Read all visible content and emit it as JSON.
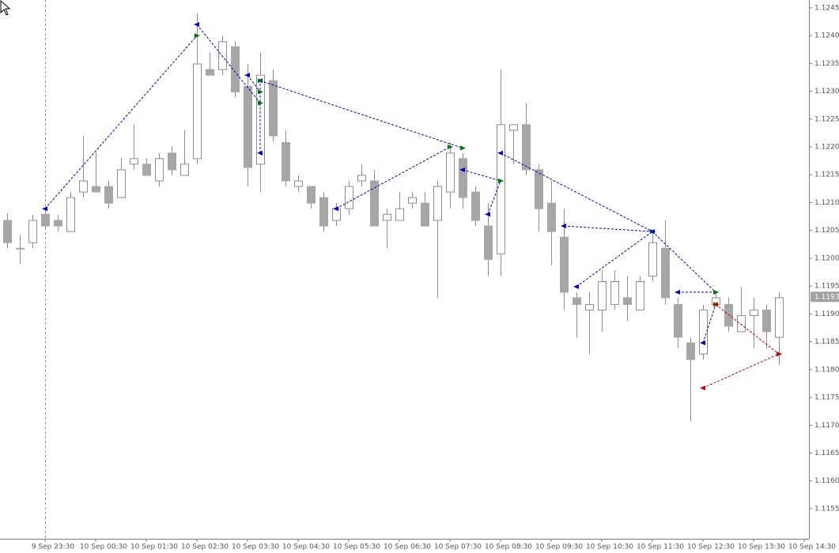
{
  "chart_data": {
    "type": "candlestick",
    "bull_color": "#ffffff",
    "bear_color": "#a6a6a6",
    "edge_color": "#8c8c8c",
    "open": [
      1.12068,
      1.12018,
      1.12028,
      1.12079,
      1.12068,
      1.12048,
      1.12119,
      1.12129,
      1.12129,
      1.12109,
      1.12169,
      1.12169,
      1.12139,
      1.12189,
      1.12149,
      1.12179,
      1.12339,
      1.12339,
      1.1238,
      1.12309,
      1.12169,
      1.12319,
      1.12208,
      1.12129,
      1.12129,
      1.12109,
      1.12068,
      1.12089,
      1.12139,
      1.12139,
      1.12068,
      1.12068,
      1.12099,
      1.12099,
      1.12068,
      1.12119,
      1.12179,
      1.12119,
      1.12058,
      1.12008,
      1.1223,
      1.1224,
      1.12159,
      1.12099,
      1.12038,
      1.11929,
      1.11907,
      1.11907,
      1.11917,
      1.11929,
      1.11907,
      1.11968,
      1.12018,
      1.11917,
      1.11848,
      1.11828,
      1.11917,
      1.11917,
      1.11868,
      1.11897,
      1.11907,
      1.11858
    ],
    "high": [
      1.12081,
      1.12042,
      1.12078,
      1.12089,
      1.12078,
      1.12119,
      1.1222,
      1.1219,
      1.12139,
      1.1218,
      1.1224,
      1.12179,
      1.12189,
      1.122,
      1.1223,
      1.1244,
      1.1237,
      1.124,
      1.1239,
      1.12349,
      1.1237,
      1.12339,
      1.1223,
      1.12149,
      1.12129,
      1.12119,
      1.12099,
      1.12139,
      1.12169,
      1.12159,
      1.12089,
      1.12119,
      1.12119,
      1.12119,
      1.12139,
      1.12208,
      1.12189,
      1.12129,
      1.12099,
      1.12339,
      1.1224,
      1.12279,
      1.12169,
      1.12139,
      1.12089,
      1.11939,
      1.11939,
      1.11978,
      1.11978,
      1.11968,
      1.11968,
      1.12048,
      1.12068,
      1.11929,
      1.11858,
      1.11917,
      1.11939,
      1.11929,
      1.11949,
      1.11929,
      1.11917,
      1.11939
    ],
    "low": [
      1.12018,
      1.1199,
      1.12018,
      1.12052,
      1.12048,
      1.12048,
      1.12109,
      1.12119,
      1.12089,
      1.12109,
      1.12159,
      1.12149,
      1.12129,
      1.12149,
      1.12149,
      1.12169,
      1.12329,
      1.12329,
      1.12289,
      1.12129,
      1.12119,
      1.1221,
      1.12129,
      1.12119,
      1.12089,
      1.12048,
      1.12058,
      1.12078,
      1.12129,
      1.12058,
      1.12018,
      1.12068,
      1.12089,
      1.12058,
      1.11929,
      1.12089,
      1.12089,
      1.12058,
      1.11968,
      1.11968,
      1.12169,
      1.12149,
      1.12048,
      1.11988,
      1.11907,
      1.11858,
      1.11828,
      1.11868,
      1.11907,
      1.11887,
      1.11907,
      1.11958,
      1.11917,
      1.11838,
      1.11707,
      1.11818,
      1.11917,
      1.11868,
      1.11868,
      1.11838,
      1.11838,
      1.11808
    ],
    "close": [
      1.12028,
      1.12017,
      1.12068,
      1.12058,
      1.12058,
      1.12109,
      1.12139,
      1.12119,
      1.12099,
      1.12159,
      1.12179,
      1.12149,
      1.12179,
      1.12159,
      1.12169,
      1.12349,
      1.12329,
      1.12389,
      1.12299,
      1.12163,
      1.12329,
      1.1222,
      1.12139,
      1.12139,
      1.12099,
      1.12058,
      1.12089,
      1.12129,
      1.12149,
      1.12058,
      1.12079,
      1.12089,
      1.12109,
      1.12058,
      1.12129,
      1.12189,
      1.12109,
      1.12068,
      1.11998,
      1.1224,
      1.1224,
      1.12159,
      1.12089,
      1.12048,
      1.11939,
      1.11917,
      1.11917,
      1.11958,
      1.11958,
      1.11917,
      1.11958,
      1.12028,
      1.11929,
      1.11858,
      1.11818,
      1.11907,
      1.11929,
      1.11878,
      1.11897,
      1.11907,
      1.11868,
      1.11929
    ],
    "xticks": [
      {
        "value": 3,
        "label": "9 Sep 23:30"
      },
      {
        "value": 7,
        "label": "10 Sep 00:30"
      },
      {
        "value": 11,
        "label": "10 Sep 01:30"
      },
      {
        "value": 15,
        "label": "10 Sep 02:30"
      },
      {
        "value": 19,
        "label": "10 Sep 03:30"
      },
      {
        "value": 23,
        "label": "10 Sep 04:30"
      },
      {
        "value": 27,
        "label": "10 Sep 05:30"
      },
      {
        "value": 31,
        "label": "10 Sep 06:30"
      },
      {
        "value": 35,
        "label": "10 Sep 07:30"
      },
      {
        "value": 39,
        "label": "10 Sep 08:30"
      },
      {
        "value": 43,
        "label": "10 Sep 09:30"
      },
      {
        "value": 47,
        "label": "10 Sep 10:30"
      },
      {
        "value": 51,
        "label": "10 Sep 11:30"
      },
      {
        "value": 55,
        "label": "10 Sep 12:30"
      },
      {
        "value": 59,
        "label": "10 Sep 13:30"
      },
      {
        "value": 63,
        "label": "10 Sep 14:30"
      }
    ],
    "ylim": [
      1.11496,
      1.12464
    ],
    "yticks": [
      1.1245,
      {
        "value": 1.124,
        "label": "1.1240"
      },
      1.1235,
      {
        "value": 1.123,
        "label": "1.1230"
      },
      1.1225,
      {
        "value": 1.122,
        "label": "1.1220"
      },
      1.1215,
      {
        "value": 1.121,
        "label": "1.1210"
      },
      1.1205,
      {
        "value": 1.12,
        "label": "1.1200"
      },
      1.1195,
      {
        "value": 1.119,
        "label": "1.1190"
      },
      1.1185,
      {
        "value": 1.118,
        "label": "1.1180"
      },
      1.1175,
      {
        "value": 1.117,
        "label": "1.1170"
      },
      1.1165,
      {
        "value": 1.116,
        "label": "1.1160"
      },
      1.1155
    ],
    "last_price": 1.1193,
    "trades": [
      {
        "color": "#0000cc",
        "from": [
          3,
          1.12089
        ],
        "to": [
          15,
          1.124
        ]
      },
      {
        "color": "#0000cc",
        "from": [
          15,
          1.1242
        ],
        "to": [
          20,
          1.12279
        ]
      },
      {
        "color": "#0000cc",
        "from": [
          19,
          1.12329
        ],
        "to": [
          20,
          1.12299
        ]
      },
      {
        "color": "#0000cc",
        "from": [
          20,
          1.12319
        ],
        "to": [
          36,
          1.12198
        ]
      },
      {
        "color": "#0000cc",
        "from": [
          20,
          1.12189
        ],
        "to": [
          20,
          1.12319
        ]
      },
      {
        "color": "#0000cc",
        "from": [
          26,
          1.12089
        ],
        "to": [
          35,
          1.122
        ]
      },
      {
        "color": "#0000cc",
        "from": [
          36,
          1.12159
        ],
        "to": [
          39,
          1.12139
        ]
      },
      {
        "color": "#0000cc",
        "from": [
          38,
          1.12079
        ],
        "to": [
          39,
          1.12139
        ]
      },
      {
        "color": "#0000cc",
        "from": [
          39,
          1.12189
        ],
        "to": [
          51,
          1.12048
        ]
      },
      {
        "color": "#0000cc",
        "from": [
          44,
          1.12058
        ],
        "to": [
          51,
          1.12048
        ]
      },
      {
        "color": "#0000cc",
        "from": [
          45,
          1.11949
        ],
        "to": [
          51,
          1.12048
        ]
      },
      {
        "color": "#0000cc",
        "from": [
          51,
          1.12048
        ],
        "to": [
          56,
          1.11939
        ]
      },
      {
        "color": "#0000cc",
        "from": [
          53,
          1.11939
        ],
        "to": [
          56,
          1.11939
        ]
      },
      {
        "color": "#0000cc",
        "from": [
          55,
          1.11848
        ],
        "to": [
          56,
          1.11917
        ]
      },
      {
        "color": "#cc0000",
        "from": [
          55,
          1.11767
        ],
        "to": [
          61,
          1.11828
        ]
      },
      {
        "color": "#cc0000",
        "from": [
          56,
          1.11917
        ],
        "to": [
          61,
          1.11828
        ]
      }
    ]
  }
}
